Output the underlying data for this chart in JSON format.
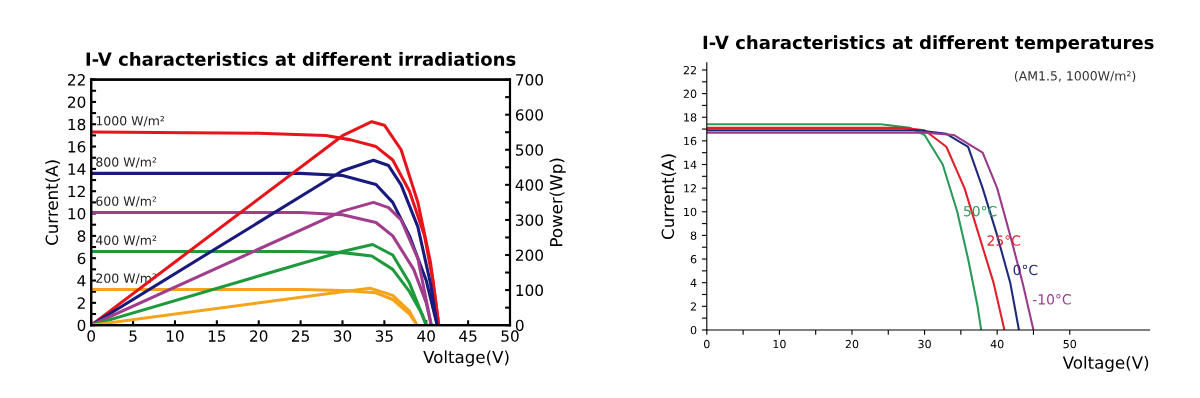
{
  "chart_data": [
    {
      "type": "line",
      "title": "I-V characteristics at different irradiations",
      "xlabel": "Voltage(V)",
      "ylabel": "Current(A)",
      "y2label": "Power(Wp)",
      "xlim": [
        0,
        50
      ],
      "xticks": [
        0,
        5,
        10,
        15,
        20,
        25,
        30,
        35,
        40,
        45,
        50
      ],
      "ylim": [
        0,
        22
      ],
      "yticks": [
        0,
        {
          "value": 1,
          "label": null
        },
        2,
        {
          "value": 3,
          "label": null
        },
        4,
        {
          "value": 5,
          "label": null
        },
        6,
        {
          "value": 7,
          "label": null
        },
        8,
        {
          "value": 9,
          "label": null
        },
        10,
        {
          "value": 11,
          "label": null
        },
        12,
        {
          "value": 13,
          "label": null
        },
        14,
        {
          "value": 15,
          "label": null
        },
        16,
        {
          "value": 17,
          "label": null
        },
        18,
        {
          "value": 19,
          "label": null
        },
        20,
        {
          "value": 21,
          "label": null
        },
        22
      ],
      "y2lim": [
        0,
        700
      ],
      "y2ticks": [
        0,
        {
          "value": 50,
          "label": null
        },
        100,
        {
          "value": 150,
          "label": null
        },
        200,
        {
          "value": 250,
          "label": null
        },
        300,
        {
          "value": 350,
          "label": null
        },
        400,
        {
          "value": 450,
          "label": null
        },
        500,
        {
          "value": 550,
          "label": null
        },
        600,
        {
          "value": 650,
          "label": null
        },
        700
      ],
      "grid": false,
      "legend": false,
      "line_style": "solid",
      "series": [
        {
          "name": "1000 W/m²",
          "color": "#e8141b",
          "x": [
            0,
            20,
            28,
            31,
            34,
            36,
            38,
            39.8,
            40.8,
            41.5
          ],
          "values": [
            17.3,
            17.2,
            17.0,
            16.6,
            16.0,
            14.8,
            12,
            8,
            4,
            0
          ]
        },
        {
          "name": "800 W/m²",
          "color": "#1a1a7e",
          "x": [
            0,
            25,
            30,
            34,
            36,
            38,
            40,
            41.3
          ],
          "values": [
            13.6,
            13.6,
            13.4,
            12.6,
            11,
            8,
            4,
            0
          ]
        },
        {
          "name": "600 W/m²",
          "color": "#a03d8c",
          "x": [
            0,
            25,
            30,
            34,
            36,
            38.5,
            40,
            40.6
          ],
          "values": [
            10.1,
            10.1,
            9.9,
            9.2,
            8,
            5,
            2,
            0
          ]
        },
        {
          "name": "400 W/m²",
          "color": "#1e9a3c",
          "x": [
            0,
            25,
            30,
            33.5,
            36,
            38,
            39.5,
            40
          ],
          "values": [
            6.6,
            6.6,
            6.5,
            6.2,
            5,
            3,
            1,
            0
          ]
        },
        {
          "name": "200 W/m²",
          "color": "#f5a31a",
          "x": [
            0,
            25,
            30,
            34,
            36,
            38,
            38.9
          ],
          "values": [
            3.2,
            3.2,
            3.1,
            2.9,
            2.3,
            1,
            0
          ]
        },
        {
          "axis": "y2",
          "color": "#e8141b",
          "x": [
            0,
            30,
            33.5,
            35,
            37,
            39,
            40.5,
            41.5
          ],
          "values": [
            0,
            540,
            580,
            570,
            500,
            350,
            180,
            0
          ]
        },
        {
          "axis": "y2",
          "color": "#1a1a7e",
          "x": [
            0,
            30,
            33.7,
            35.5,
            37,
            39,
            40.5,
            41.3
          ],
          "values": [
            0,
            440,
            470,
            455,
            400,
            280,
            120,
            0
          ]
        },
        {
          "axis": "y2",
          "color": "#a03d8c",
          "x": [
            0,
            30,
            33.7,
            35.5,
            37,
            39,
            40.6
          ],
          "values": [
            0,
            325,
            350,
            335,
            300,
            190,
            0
          ]
        },
        {
          "axis": "y2",
          "color": "#1e9a3c",
          "x": [
            0,
            30,
            33.6,
            36,
            38,
            40
          ],
          "values": [
            0,
            210,
            230,
            200,
            120,
            0
          ]
        },
        {
          "axis": "y2",
          "color": "#f5a31a",
          "x": [
            0,
            30,
            33.3,
            36,
            38,
            38.9
          ],
          "values": [
            0,
            95,
            105,
            85,
            40,
            0
          ]
        }
      ]
    },
    {
      "type": "line",
      "title": "I-V characteristics at different temperatures",
      "xlabel": "Voltage(V)",
      "ylabel": "Current(A)",
      "annotations": [
        "(AM1.5, 1000W/m²)"
      ],
      "xlim": [
        0,
        61
      ],
      "xticks": [
        0,
        {
          "value": 5,
          "label": null
        },
        10,
        {
          "value": 15,
          "label": null
        },
        20,
        {
          "value": 25,
          "label": null
        },
        30,
        {
          "value": 35,
          "label": null
        },
        40,
        {
          "value": 45,
          "label": null
        },
        50
      ],
      "ylim": [
        0,
        22.6
      ],
      "yticks": [
        0,
        {
          "value": 1,
          "label": null
        },
        2,
        {
          "value": 3,
          "label": null
        },
        4,
        {
          "value": 5,
          "label": null
        },
        6,
        {
          "value": 7,
          "label": null
        },
        8,
        {
          "value": 9,
          "label": null
        },
        10,
        {
          "value": 11,
          "label": null
        },
        12,
        {
          "value": 13,
          "label": null
        },
        14,
        {
          "value": 15,
          "label": null
        },
        16,
        {
          "value": 17,
          "label": null
        },
        18,
        {
          "value": 19,
          "label": null
        },
        20,
        {
          "value": 21,
          "label": null
        },
        22
      ],
      "grid": false,
      "legend": false,
      "line_style": "solid",
      "series": [
        {
          "name": "50°C",
          "color": "#2a9a5a",
          "x": [
            0,
            24,
            28,
            30,
            32.5,
            34.5,
            36,
            37.3,
            37.8
          ],
          "values": [
            17.4,
            17.4,
            17.1,
            16.5,
            14,
            10,
            6,
            2,
            0
          ]
        },
        {
          "name": "25°C",
          "color": "#e0202a",
          "x": [
            0,
            27,
            30,
            33,
            35.5,
            37.5,
            39.5,
            41
          ],
          "values": [
            17.1,
            17.1,
            16.9,
            15.5,
            12,
            8,
            4,
            0
          ]
        },
        {
          "name": "0°C",
          "color": "#1f2a7a",
          "x": [
            0,
            29,
            33,
            36,
            38,
            40,
            41.8,
            43
          ],
          "values": [
            16.9,
            16.9,
            16.6,
            15.5,
            12,
            8,
            4,
            0
          ]
        },
        {
          "name": "-10°C",
          "color": "#9a3a8a",
          "x": [
            0,
            30,
            34,
            38,
            40,
            41.8,
            43.5,
            45
          ],
          "values": [
            16.7,
            16.7,
            16.5,
            15,
            12,
            8,
            4,
            0
          ]
        }
      ]
    }
  ]
}
